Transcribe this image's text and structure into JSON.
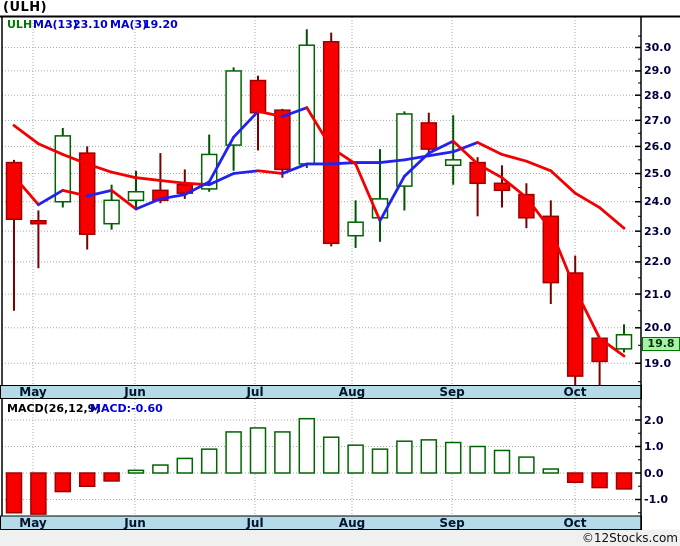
{
  "title": "(ULH)",
  "legend": {
    "symbol": "ULH",
    "ma13_label": "MA(13)",
    "ma13_value": "23.10",
    "ma3_label": "MA(3)",
    "ma3_value": "19.20"
  },
  "macd_legend": {
    "label": "MACD(26,12,9)",
    "value_label": "MACD:-0.60"
  },
  "price_tag": "19.8",
  "footer": {
    "credit": "©12Stocks.com"
  },
  "colors": {
    "up_stroke": "#006400",
    "up_fill": "#ffffff",
    "up_wick": "#005500",
    "down_fill": "#f80000",
    "down_stroke": "#a00000",
    "down_wick": "#7b0000",
    "ma_red": "#f20000",
    "ma_blue": "#2222ee",
    "band_bg": "#b5dbe8",
    "grid": "#a8a8a8",
    "frame": "#000000",
    "axis_text": "#00003c",
    "legend_symbol": "#007700",
    "legend_ma": "#0000d0",
    "macd_label": "#000000",
    "macd_value": "#0000d0",
    "tag_bg": "#a9f0a9",
    "tag_border": "#007700",
    "footer_bg": "#f0f0f0"
  },
  "chart_data": [
    {
      "type": "candlestick",
      "title": "ULH weekly price",
      "yscale": "log",
      "ylim": [
        18.4,
        31.3
      ],
      "grid": true,
      "price_axis_labels": [
        30.0,
        29.0,
        28.0,
        27.0,
        26.0,
        25.0,
        24.0,
        23.0,
        22.0,
        21.0,
        20.0,
        19.0
      ],
      "months": [
        "May",
        "Jun",
        "Jul",
        "Aug",
        "Sep",
        "Oct"
      ],
      "last_price": 19.8,
      "candles": [
        {
          "o": 25.4,
          "h": 25.5,
          "l": 20.5,
          "c": 23.4
        },
        {
          "o": 23.35,
          "h": 23.7,
          "l": 21.8,
          "c": 23.25
        },
        {
          "o": 24.0,
          "h": 26.7,
          "l": 23.8,
          "c": 26.4
        },
        {
          "o": 25.75,
          "h": 26.0,
          "l": 22.4,
          "c": 22.9
        },
        {
          "o": 23.25,
          "h": 24.6,
          "l": 23.05,
          "c": 24.05
        },
        {
          "o": 24.05,
          "h": 25.1,
          "l": 23.8,
          "c": 24.35
        },
        {
          "o": 24.4,
          "h": 25.75,
          "l": 23.95,
          "c": 24.05
        },
        {
          "o": 24.6,
          "h": 25.15,
          "l": 24.1,
          "c": 24.3
        },
        {
          "o": 24.45,
          "h": 26.45,
          "l": 24.35,
          "c": 25.7
        },
        {
          "o": 26.05,
          "h": 29.15,
          "l": 25.1,
          "c": 29.0
        },
        {
          "o": 28.6,
          "h": 28.8,
          "l": 25.85,
          "c": 27.3
        },
        {
          "o": 27.4,
          "h": 27.45,
          "l": 24.85,
          "c": 25.15
        },
        {
          "o": 25.35,
          "h": 30.8,
          "l": 25.2,
          "c": 30.1
        },
        {
          "o": 30.25,
          "h": 30.65,
          "l": 22.5,
          "c": 22.6
        },
        {
          "o": 22.85,
          "h": 24.05,
          "l": 22.45,
          "c": 23.3
        },
        {
          "o": 23.45,
          "h": 25.9,
          "l": 22.65,
          "c": 24.1
        },
        {
          "o": 24.55,
          "h": 27.35,
          "l": 23.7,
          "c": 27.25
        },
        {
          "o": 26.9,
          "h": 27.3,
          "l": 25.8,
          "c": 25.9
        },
        {
          "o": 25.3,
          "h": 27.2,
          "l": 24.6,
          "c": 25.5
        },
        {
          "o": 25.4,
          "h": 25.6,
          "l": 23.5,
          "c": 24.65
        },
        {
          "o": 24.65,
          "h": 25.3,
          "l": 23.8,
          "c": 24.4
        },
        {
          "o": 24.25,
          "h": 24.65,
          "l": 23.1,
          "c": 23.45
        },
        {
          "o": 23.5,
          "h": 24.05,
          "l": 20.7,
          "c": 21.35
        },
        {
          "o": 21.65,
          "h": 22.2,
          "l": 18.4,
          "c": 18.65
        },
        {
          "o": 19.7,
          "h": 19.7,
          "l": 18.4,
          "c": 19.05
        },
        {
          "o": 19.4,
          "h": 20.1,
          "l": 19.3,
          "c": 19.8
        }
      ],
      "series": [
        {
          "name": "MA(13)",
          "values": [
            26.8,
            26.1,
            25.7,
            25.35,
            25.05,
            24.85,
            24.75,
            24.65,
            24.6,
            25.0,
            25.1,
            25.0,
            25.35,
            25.35,
            25.4,
            25.4,
            25.5,
            25.65,
            25.8,
            26.15,
            25.7,
            25.45,
            25.1,
            24.3,
            23.8,
            23.1
          ]
        },
        {
          "name": "MA(3)",
          "values": [
            24.9,
            23.9,
            24.4,
            24.2,
            24.4,
            23.75,
            24.1,
            24.25,
            24.7,
            26.35,
            27.35,
            27.15,
            27.5,
            25.95,
            25.35,
            23.35,
            24.9,
            25.75,
            26.2,
            25.35,
            24.85,
            24.15,
            23.05,
            21.15,
            19.7,
            19.2
          ]
        }
      ]
    },
    {
      "type": "bar",
      "title": "MACD(26,12,9)",
      "last_value": -0.6,
      "ylim": [
        -1.6,
        2.8
      ],
      "grid": true,
      "axis_labels": [
        2.0,
        1.0,
        0.0,
        -1.0
      ],
      "values": [
        -1.5,
        -1.55,
        -0.7,
        -0.5,
        -0.3,
        0.1,
        0.3,
        0.55,
        0.9,
        1.55,
        1.7,
        1.55,
        2.05,
        1.35,
        1.05,
        0.9,
        1.2,
        1.25,
        1.15,
        1.0,
        0.85,
        0.6,
        0.15,
        -0.35,
        -0.55,
        -0.6
      ]
    }
  ]
}
